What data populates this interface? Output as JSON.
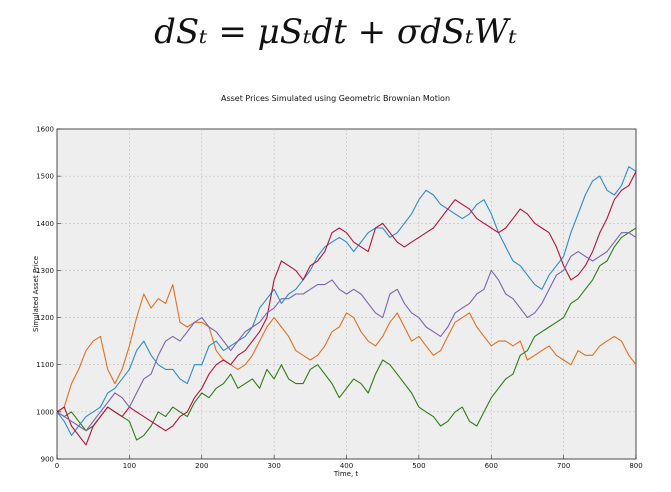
{
  "equation": "dSₜ = μSₜdt + σdSₜWₜ",
  "chart_data": {
    "type": "line",
    "title": "Asset Prices Simulated using Geometric Brownian Motion",
    "xlabel": "Time, t",
    "ylabel": "Simulated Asset Price",
    "xlim": [
      0,
      800
    ],
    "ylim": [
      900,
      1600
    ],
    "xticks": [
      0,
      100,
      200,
      300,
      400,
      500,
      600,
      700,
      800
    ],
    "yticks": [
      900,
      1000,
      1100,
      1200,
      1300,
      1400,
      1500,
      1600
    ],
    "grid": true,
    "series": [
      {
        "color": "#e1701f",
        "x": [
          0,
          10,
          20,
          30,
          40,
          50,
          60,
          70,
          80,
          90,
          100,
          110,
          120,
          130,
          140,
          150,
          160,
          170,
          180,
          190,
          200,
          210,
          220,
          230,
          240,
          250,
          260,
          270,
          280,
          290,
          300,
          310,
          320,
          330,
          340,
          350,
          360,
          370,
          380,
          390,
          400,
          410,
          420,
          430,
          440,
          450,
          460,
          470,
          480,
          490,
          500,
          510,
          520,
          530,
          540,
          550,
          560,
          570,
          580,
          590,
          600,
          610,
          620,
          630,
          640,
          650,
          660,
          670,
          680,
          690,
          700,
          710,
          720,
          730,
          740,
          750,
          760,
          770,
          780,
          790,
          800
        ],
        "values": [
          1000,
          1010,
          1060,
          1090,
          1130,
          1150,
          1160,
          1090,
          1060,
          1090,
          1140,
          1200,
          1250,
          1220,
          1240,
          1230,
          1270,
          1190,
          1180,
          1190,
          1190,
          1180,
          1130,
          1110,
          1100,
          1090,
          1100,
          1120,
          1150,
          1180,
          1200,
          1180,
          1160,
          1130,
          1120,
          1110,
          1120,
          1140,
          1170,
          1180,
          1210,
          1200,
          1170,
          1150,
          1140,
          1160,
          1190,
          1210,
          1180,
          1150,
          1160,
          1140,
          1120,
          1130,
          1160,
          1190,
          1200,
          1210,
          1180,
          1160,
          1140,
          1150,
          1150,
          1140,
          1150,
          1110,
          1120,
          1130,
          1140,
          1120,
          1110,
          1100,
          1130,
          1120,
          1120,
          1140,
          1150,
          1160,
          1150,
          1120,
          1100
        ]
      },
      {
        "color": "#2e7d15",
        "x": [
          0,
          10,
          20,
          30,
          40,
          50,
          60,
          70,
          80,
          90,
          100,
          110,
          120,
          130,
          140,
          150,
          160,
          170,
          180,
          190,
          200,
          210,
          220,
          230,
          240,
          250,
          260,
          270,
          280,
          290,
          300,
          310,
          320,
          330,
          340,
          350,
          360,
          370,
          380,
          390,
          400,
          410,
          420,
          430,
          440,
          450,
          460,
          470,
          480,
          490,
          500,
          510,
          520,
          530,
          540,
          550,
          560,
          570,
          580,
          590,
          600,
          610,
          620,
          630,
          640,
          650,
          660,
          670,
          680,
          690,
          700,
          710,
          720,
          730,
          740,
          750,
          760,
          770,
          780,
          790,
          800
        ],
        "values": [
          1000,
          990,
          1000,
          980,
          960,
          970,
          990,
          1010,
          1000,
          990,
          980,
          940,
          950,
          970,
          1000,
          990,
          1010,
          1000,
          990,
          1020,
          1040,
          1030,
          1050,
          1060,
          1080,
          1050,
          1060,
          1070,
          1050,
          1090,
          1070,
          1100,
          1070,
          1060,
          1060,
          1090,
          1100,
          1080,
          1060,
          1030,
          1050,
          1070,
          1060,
          1040,
          1080,
          1110,
          1100,
          1080,
          1060,
          1040,
          1010,
          1000,
          990,
          970,
          980,
          1000,
          1010,
          980,
          970,
          1000,
          1030,
          1050,
          1070,
          1080,
          1120,
          1130,
          1160,
          1170,
          1180,
          1190,
          1200,
          1230,
          1240,
          1260,
          1280,
          1310,
          1320,
          1350,
          1370,
          1380,
          1390
        ]
      },
      {
        "color": "#2e8bc8",
        "x": [
          0,
          10,
          20,
          30,
          40,
          50,
          60,
          70,
          80,
          90,
          100,
          110,
          120,
          130,
          140,
          150,
          160,
          170,
          180,
          190,
          200,
          210,
          220,
          230,
          240,
          250,
          260,
          270,
          280,
          290,
          300,
          310,
          320,
          330,
          340,
          350,
          360,
          370,
          380,
          390,
          400,
          410,
          420,
          430,
          440,
          450,
          460,
          470,
          480,
          490,
          500,
          510,
          520,
          530,
          540,
          550,
          560,
          570,
          580,
          590,
          600,
          610,
          620,
          630,
          640,
          650,
          660,
          670,
          680,
          690,
          700,
          710,
          720,
          730,
          740,
          750,
          760,
          770,
          780,
          790,
          800
        ],
        "values": [
          1000,
          980,
          950,
          970,
          990,
          1000,
          1010,
          1040,
          1050,
          1070,
          1090,
          1130,
          1150,
          1120,
          1100,
          1090,
          1090,
          1070,
          1060,
          1100,
          1100,
          1140,
          1150,
          1130,
          1140,
          1150,
          1160,
          1180,
          1220,
          1240,
          1260,
          1230,
          1250,
          1260,
          1280,
          1300,
          1330,
          1350,
          1360,
          1370,
          1360,
          1340,
          1360,
          1380,
          1390,
          1390,
          1370,
          1380,
          1400,
          1420,
          1450,
          1470,
          1460,
          1440,
          1430,
          1420,
          1410,
          1420,
          1440,
          1450,
          1420,
          1380,
          1350,
          1320,
          1310,
          1290,
          1270,
          1260,
          1290,
          1310,
          1330,
          1380,
          1420,
          1460,
          1490,
          1500,
          1470,
          1460,
          1480,
          1520,
          1510
        ]
      },
      {
        "color": "#b0143a",
        "x": [
          0,
          10,
          20,
          30,
          40,
          50,
          60,
          70,
          80,
          90,
          100,
          110,
          120,
          130,
          140,
          150,
          160,
          170,
          180,
          190,
          200,
          210,
          220,
          230,
          240,
          250,
          260,
          270,
          280,
          290,
          300,
          310,
          320,
          330,
          340,
          350,
          360,
          370,
          380,
          390,
          400,
          410,
          420,
          430,
          440,
          450,
          460,
          470,
          480,
          490,
          500,
          510,
          520,
          530,
          540,
          550,
          560,
          570,
          580,
          590,
          600,
          610,
          620,
          630,
          640,
          650,
          660,
          670,
          680,
          690,
          700,
          710,
          720,
          730,
          740,
          750,
          760,
          770,
          780,
          790,
          800
        ],
        "values": [
          1000,
          1010,
          970,
          950,
          930,
          970,
          990,
          1010,
          1000,
          990,
          1010,
          1000,
          990,
          980,
          970,
          960,
          970,
          990,
          1000,
          1030,
          1050,
          1080,
          1100,
          1110,
          1100,
          1120,
          1130,
          1150,
          1170,
          1200,
          1280,
          1320,
          1310,
          1300,
          1280,
          1310,
          1320,
          1340,
          1380,
          1390,
          1380,
          1360,
          1350,
          1340,
          1390,
          1400,
          1380,
          1360,
          1350,
          1360,
          1370,
          1380,
          1390,
          1410,
          1430,
          1450,
          1440,
          1430,
          1410,
          1400,
          1390,
          1380,
          1390,
          1410,
          1430,
          1420,
          1400,
          1390,
          1380,
          1350,
          1310,
          1280,
          1290,
          1310,
          1340,
          1380,
          1410,
          1450,
          1470,
          1480,
          1510
        ]
      },
      {
        "color": "#7b63ad",
        "x": [
          0,
          10,
          20,
          30,
          40,
          50,
          60,
          70,
          80,
          90,
          100,
          110,
          120,
          130,
          140,
          150,
          160,
          170,
          180,
          190,
          200,
          210,
          220,
          230,
          240,
          250,
          260,
          270,
          280,
          290,
          300,
          310,
          320,
          330,
          340,
          350,
          360,
          370,
          380,
          390,
          400,
          410,
          420,
          430,
          440,
          450,
          460,
          470,
          480,
          490,
          500,
          510,
          520,
          530,
          540,
          550,
          560,
          570,
          580,
          590,
          600,
          610,
          620,
          630,
          640,
          650,
          660,
          670,
          680,
          690,
          700,
          710,
          720,
          730,
          740,
          750,
          760,
          770,
          780,
          790,
          800
        ],
        "values": [
          1000,
          990,
          980,
          970,
          960,
          980,
          1000,
          1020,
          1040,
          1030,
          1010,
          1040,
          1070,
          1080,
          1120,
          1150,
          1160,
          1150,
          1170,
          1190,
          1200,
          1180,
          1170,
          1150,
          1130,
          1150,
          1170,
          1180,
          1190,
          1210,
          1220,
          1240,
          1240,
          1250,
          1250,
          1260,
          1270,
          1270,
          1280,
          1260,
          1250,
          1260,
          1250,
          1230,
          1210,
          1200,
          1250,
          1260,
          1230,
          1210,
          1200,
          1180,
          1170,
          1160,
          1180,
          1210,
          1220,
          1230,
          1250,
          1260,
          1300,
          1280,
          1250,
          1240,
          1220,
          1200,
          1210,
          1230,
          1260,
          1290,
          1300,
          1330,
          1340,
          1330,
          1320,
          1330,
          1340,
          1360,
          1380,
          1380,
          1370
        ]
      }
    ]
  }
}
